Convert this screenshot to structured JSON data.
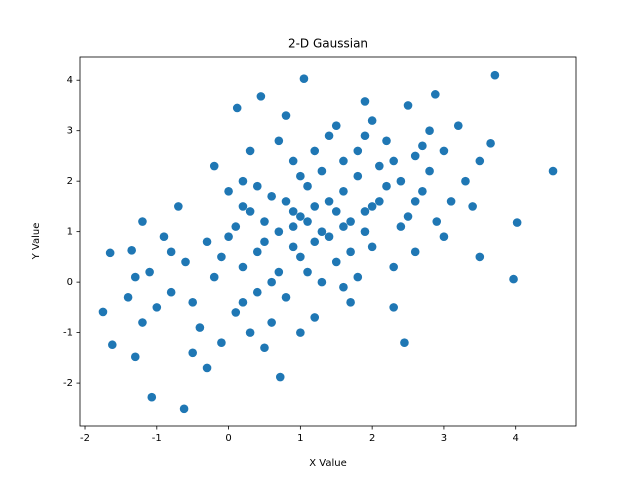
{
  "chart_data": {
    "type": "scatter",
    "title": "2-D Gaussian",
    "x_label": "X Value",
    "y_label": "Y Value",
    "color": "#1f77b4",
    "xlim": [
      -2.07,
      4.84
    ],
    "ylim": [
      -2.85,
      4.46
    ],
    "xticks": [
      -2,
      -1,
      0,
      1,
      2,
      3,
      4
    ],
    "yticks": [
      -2,
      -1,
      0,
      1,
      2,
      3,
      4
    ],
    "x": [
      3.71,
      1.05,
      4.52,
      -0.62,
      -1.07,
      -1.75,
      -1.65,
      -1.62,
      3.97,
      4.02,
      0.45,
      2.88,
      1.9,
      3.65,
      3.5,
      2.45,
      0.72,
      -0.3,
      -1.3,
      -1.35,
      -1.2,
      0.12,
      0.5,
      1.2,
      0.9,
      1.6,
      0.2,
      1.8,
      0.7,
      1.4,
      2.1,
      0.3,
      1.0,
      1.3,
      0.6,
      2.4,
      -0.2,
      1.7,
      0.8,
      2.6,
      -0.5,
      1.1,
      0.4,
      1.5,
      2.2,
      0.0,
      1.9,
      -0.8,
      2.8,
      0.1,
      1.2,
      2.0,
      -0.3,
      0.9,
      1.6,
      2.5,
      -1.0,
      0.5,
      3.0,
      0.3,
      1.4,
      2.3,
      -0.6,
      1.0,
      1.8,
      0.6,
      2.7,
      -1.2,
      0.2,
      3.2,
      1.3,
      2.0,
      -0.1,
      1.7,
      0.8,
      2.9,
      -0.9,
      1.5,
      0.4,
      2.3,
      1.1,
      -0.4,
      3.3,
      0.7,
      1.9,
      -1.4,
      2.6,
      0.0,
      1.2,
      3.1,
      0.9,
      -0.7,
      2.1,
      1.6,
      0.2,
      2.4,
      -1.1,
      1.0,
      2.8,
      0.5,
      1.4,
      3.4,
      -0.2,
      1.8,
      0.6,
      2.5,
      -0.5,
      1.3,
      2.2,
      0.1,
      3.0,
      0.8,
      1.7,
      -0.8,
      2.0,
      1.1,
      0.3,
      2.7,
      -1.3,
      1.5,
      0.4,
      2.3,
      0.7,
      1.9,
      -0.1,
      3.5,
      1.0,
      2.6,
      0.2,
      1.6,
      0.9,
      1.2
    ],
    "values": [
      4.1,
      4.03,
      2.2,
      -2.51,
      -2.28,
      -0.59,
      0.58,
      -1.24,
      0.06,
      1.18,
      3.68,
      3.72,
      3.58,
      2.75,
      0.5,
      -1.2,
      -1.88,
      -1.7,
      -1.48,
      0.63,
      1.2,
      3.45,
      0.8,
      1.5,
      1.1,
      1.8,
      0.3,
      2.1,
      0.2,
      0.9,
      1.6,
      1.4,
      0.5,
      2.2,
      1.7,
      2.0,
      0.1,
      1.2,
      -0.3,
      2.5,
      -0.4,
      1.9,
      0.6,
      0.4,
      2.8,
      0.9,
      1.0,
      -0.2,
      2.2,
      -0.6,
      2.6,
      0.7,
      0.8,
      2.4,
      -0.1,
      1.3,
      -0.5,
      1.2,
      2.6,
      -1.0,
      2.9,
      0.3,
      0.4,
      1.3,
      2.6,
      -0.8,
      1.8,
      -0.8,
      2.0,
      3.1,
      0.0,
      3.2,
      -1.2,
      0.6,
      1.6,
      1.2,
      0.9,
      3.1,
      -0.2,
      2.4,
      0.2,
      -0.9,
      2.0,
      2.8,
      1.4,
      -0.3,
      0.6,
      1.8,
      -0.7,
      1.6,
      0.7,
      1.5,
      2.3,
      2.4,
      -0.4,
      1.1,
      0.2,
      2.1,
      3.0,
      -1.3,
      1.6,
      1.5,
      2.3,
      0.1,
      0.0,
      3.5,
      -1.4,
      1.0,
      1.9,
      1.1,
      0.9,
      3.3,
      -0.4,
      0.6,
      1.5,
      1.2,
      2.6,
      2.7,
      0.1,
      1.4,
      1.9,
      -0.5,
      1.0,
      2.9,
      0.5,
      2.4,
      -1.0,
      1.6,
      1.5,
      1.1,
      1.4,
      0.8
    ]
  }
}
